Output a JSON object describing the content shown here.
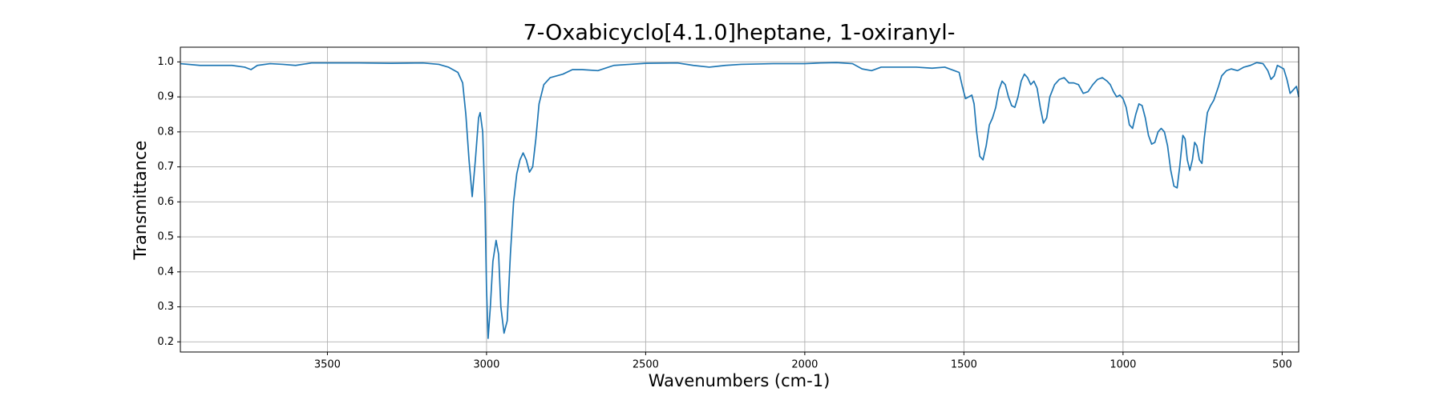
{
  "chart_data": {
    "type": "line",
    "title": "7-Oxabicyclo[4.1.0]heptane, 1-oxiranyl-",
    "xlabel": "Wavenumbers (cm-1)",
    "ylabel": "Transmittance",
    "color": "#1f77b4",
    "grid": true,
    "xlim": [
      3962,
      448
    ],
    "ylim": [
      0.171,
      1.042
    ],
    "xticks": [
      3500,
      3000,
      2500,
      2000,
      1500,
      1000,
      500
    ],
    "yticks": [
      0.2,
      0.3,
      0.4,
      0.5,
      0.6,
      0.7,
      0.8,
      0.9,
      {
        "value": 1,
        "label": "1.0"
      }
    ],
    "x": [
      3962,
      3900,
      3850,
      3800,
      3760,
      3740,
      3720,
      3680,
      3640,
      3600,
      3550,
      3500,
      3400,
      3300,
      3200,
      3150,
      3120,
      3090,
      3075,
      3065,
      3055,
      3045,
      3035,
      3025,
      3020,
      3012,
      3005,
      3000,
      2995,
      2988,
      2980,
      2970,
      2962,
      2955,
      2945,
      2935,
      2925,
      2915,
      2905,
      2895,
      2885,
      2875,
      2865,
      2855,
      2845,
      2835,
      2820,
      2800,
      2760,
      2730,
      2700,
      2650,
      2600,
      2550,
      2500,
      2400,
      2350,
      2300,
      2250,
      2200,
      2100,
      2000,
      1950,
      1900,
      1850,
      1820,
      1790,
      1760,
      1700,
      1650,
      1600,
      1560,
      1530,
      1515,
      1505,
      1495,
      1485,
      1475,
      1468,
      1460,
      1450,
      1440,
      1430,
      1420,
      1410,
      1400,
      1390,
      1380,
      1370,
      1360,
      1350,
      1340,
      1330,
      1320,
      1310,
      1300,
      1290,
      1280,
      1270,
      1260,
      1250,
      1240,
      1230,
      1215,
      1200,
      1185,
      1170,
      1155,
      1140,
      1125,
      1110,
      1095,
      1080,
      1065,
      1050,
      1040,
      1030,
      1020,
      1010,
      1000,
      990,
      980,
      970,
      960,
      950,
      940,
      930,
      920,
      910,
      900,
      890,
      880,
      870,
      860,
      850,
      840,
      830,
      822,
      812,
      805,
      798,
      790,
      782,
      775,
      768,
      760,
      752,
      745,
      735,
      725,
      715,
      700,
      690,
      675,
      660,
      640,
      620,
      600,
      580,
      560,
      545,
      535,
      525,
      515,
      505,
      495,
      485,
      475,
      465,
      455,
      448
    ],
    "values": [
      0.995,
      0.99,
      0.99,
      0.99,
      0.985,
      0.978,
      0.99,
      0.995,
      0.993,
      0.99,
      0.997,
      0.997,
      0.997,
      0.996,
      0.997,
      0.993,
      0.985,
      0.97,
      0.94,
      0.85,
      0.72,
      0.615,
      0.72,
      0.84,
      0.855,
      0.8,
      0.6,
      0.35,
      0.21,
      0.3,
      0.43,
      0.49,
      0.45,
      0.3,
      0.225,
      0.26,
      0.45,
      0.6,
      0.68,
      0.72,
      0.74,
      0.72,
      0.685,
      0.7,
      0.78,
      0.88,
      0.935,
      0.955,
      0.965,
      0.978,
      0.978,
      0.975,
      0.99,
      0.993,
      0.996,
      0.997,
      0.99,
      0.985,
      0.99,
      0.993,
      0.995,
      0.995,
      0.997,
      0.998,
      0.995,
      0.98,
      0.975,
      0.985,
      0.985,
      0.985,
      0.982,
      0.985,
      0.975,
      0.97,
      0.93,
      0.895,
      0.9,
      0.905,
      0.88,
      0.8,
      0.73,
      0.72,
      0.76,
      0.82,
      0.84,
      0.87,
      0.92,
      0.945,
      0.935,
      0.9,
      0.875,
      0.87,
      0.9,
      0.945,
      0.965,
      0.955,
      0.935,
      0.945,
      0.925,
      0.87,
      0.825,
      0.84,
      0.9,
      0.935,
      0.95,
      0.955,
      0.94,
      0.94,
      0.935,
      0.91,
      0.915,
      0.935,
      0.95,
      0.955,
      0.945,
      0.935,
      0.915,
      0.9,
      0.905,
      0.895,
      0.87,
      0.82,
      0.81,
      0.85,
      0.88,
      0.875,
      0.84,
      0.79,
      0.765,
      0.77,
      0.8,
      0.81,
      0.8,
      0.76,
      0.69,
      0.645,
      0.64,
      0.7,
      0.79,
      0.78,
      0.72,
      0.69,
      0.72,
      0.77,
      0.76,
      0.72,
      0.71,
      0.78,
      0.855,
      0.875,
      0.89,
      0.93,
      0.96,
      0.975,
      0.98,
      0.975,
      0.985,
      0.99,
      0.998,
      0.995,
      0.975,
      0.95,
      0.96,
      0.99,
      0.985,
      0.98,
      0.95,
      0.91,
      0.92,
      0.93,
      0.9
    ]
  }
}
